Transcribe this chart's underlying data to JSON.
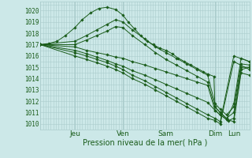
{
  "bg_color": "#cce8e8",
  "grid_color": "#aacccc",
  "line_color": "#1a5c1a",
  "marker_color": "#1a5c1a",
  "ylabel_ticks": [
    1010,
    1011,
    1012,
    1013,
    1014,
    1015,
    1016,
    1017,
    1018,
    1019,
    1020
  ],
  "ylim": [
    1009.5,
    1020.8
  ],
  "xlim": [
    0.0,
    1.0
  ],
  "xlabel": "Pression niveau de la mer( hPa )",
  "day_labels": [
    "Jeu",
    "Ven",
    "Sam",
    "Dim",
    "Lun"
  ],
  "day_positions": [
    0.165,
    0.395,
    0.6,
    0.835,
    0.925
  ],
  "series": [
    {
      "x": [
        0.0,
        0.04,
        0.08,
        0.12,
        0.165,
        0.2,
        0.24,
        0.28,
        0.32,
        0.36,
        0.395,
        0.42,
        0.45,
        0.48,
        0.51,
        0.54,
        0.57,
        0.6,
        0.63,
        0.66,
        0.69,
        0.72,
        0.75,
        0.78,
        0.8,
        0.83,
        0.835,
        0.86,
        0.89,
        0.9,
        0.925,
        0.96,
        1.0
      ],
      "y": [
        1017.0,
        1017.1,
        1017.3,
        1017.8,
        1018.5,
        1019.2,
        1019.8,
        1020.2,
        1020.3,
        1020.1,
        1019.6,
        1019.0,
        1018.4,
        1017.8,
        1017.3,
        1017.0,
        1016.7,
        1016.5,
        1016.2,
        1015.8,
        1015.5,
        1015.2,
        1014.9,
        1014.6,
        1014.4,
        1014.2,
        1011.5,
        1011.0,
        1010.5,
        1010.3,
        1010.5,
        1014.8,
        1015.0
      ]
    },
    {
      "x": [
        0.0,
        0.165,
        0.22,
        0.27,
        0.32,
        0.36,
        0.395,
        0.44,
        0.5,
        0.55,
        0.6,
        0.65,
        0.7,
        0.75,
        0.8,
        0.835,
        0.86,
        0.89,
        0.925,
        0.96,
        1.0
      ],
      "y": [
        1017.0,
        1017.3,
        1017.8,
        1018.3,
        1018.8,
        1019.2,
        1019.0,
        1018.3,
        1017.5,
        1016.8,
        1016.3,
        1015.8,
        1015.3,
        1014.8,
        1014.3,
        1011.8,
        1011.3,
        1010.8,
        1011.5,
        1015.3,
        1015.2
      ]
    },
    {
      "x": [
        0.0,
        0.165,
        0.22,
        0.27,
        0.32,
        0.36,
        0.395,
        0.44,
        0.5,
        0.55,
        0.6,
        0.65,
        0.7,
        0.75,
        0.8,
        0.835,
        0.86,
        0.89,
        0.925,
        0.96,
        1.0
      ],
      "y": [
        1017.0,
        1017.0,
        1017.4,
        1017.8,
        1018.2,
        1018.6,
        1018.5,
        1017.8,
        1017.0,
        1016.3,
        1015.7,
        1015.2,
        1014.7,
        1014.2,
        1013.7,
        1011.5,
        1011.0,
        1010.5,
        1011.0,
        1015.0,
        1015.0
      ]
    },
    {
      "x": [
        0.0,
        0.165,
        0.22,
        0.27,
        0.32,
        0.36,
        0.395,
        0.44,
        0.5,
        0.55,
        0.6,
        0.65,
        0.7,
        0.75,
        0.8,
        0.835,
        0.86,
        0.89,
        0.925,
        0.96,
        1.0
      ],
      "y": [
        1017.0,
        1016.8,
        1016.5,
        1016.3,
        1016.1,
        1015.9,
        1015.8,
        1015.5,
        1015.2,
        1014.9,
        1014.6,
        1014.3,
        1014.0,
        1013.7,
        1013.4,
        1011.2,
        1010.8,
        1010.4,
        1011.8,
        1015.8,
        1015.5
      ]
    },
    {
      "x": [
        0.0,
        0.165,
        0.22,
        0.27,
        0.32,
        0.36,
        0.395,
        0.44,
        0.5,
        0.55,
        0.6,
        0.65,
        0.7,
        0.75,
        0.8,
        0.835,
        0.86,
        0.89,
        0.925,
        0.96,
        1.0
      ],
      "y": [
        1017.0,
        1016.5,
        1016.2,
        1015.9,
        1015.6,
        1015.3,
        1015.1,
        1014.7,
        1014.3,
        1013.9,
        1013.5,
        1013.1,
        1012.7,
        1012.3,
        1011.9,
        1011.2,
        1010.8,
        1010.4,
        1010.2,
        1014.5,
        1014.3
      ]
    },
    {
      "x": [
        0.0,
        0.165,
        0.22,
        0.27,
        0.32,
        0.36,
        0.395,
        0.44,
        0.5,
        0.55,
        0.6,
        0.65,
        0.7,
        0.75,
        0.8,
        0.835,
        0.86,
        0.925,
        1.0
      ],
      "y": [
        1017.0,
        1016.3,
        1016.0,
        1015.7,
        1015.4,
        1015.1,
        1014.8,
        1014.3,
        1013.8,
        1013.3,
        1012.8,
        1012.3,
        1011.8,
        1011.3,
        1010.8,
        1010.5,
        1010.2,
        1016.0,
        1015.5
      ]
    },
    {
      "x": [
        0.0,
        0.165,
        0.22,
        0.27,
        0.32,
        0.36,
        0.395,
        0.44,
        0.5,
        0.55,
        0.6,
        0.65,
        0.7,
        0.75,
        0.8,
        0.835,
        0.86,
        0.925,
        1.0
      ],
      "y": [
        1017.0,
        1016.0,
        1015.7,
        1015.4,
        1015.1,
        1014.8,
        1014.5,
        1014.0,
        1013.5,
        1013.0,
        1012.5,
        1012.0,
        1011.5,
        1011.0,
        1010.5,
        1010.3,
        1010.0,
        1015.5,
        1014.8
      ]
    }
  ]
}
